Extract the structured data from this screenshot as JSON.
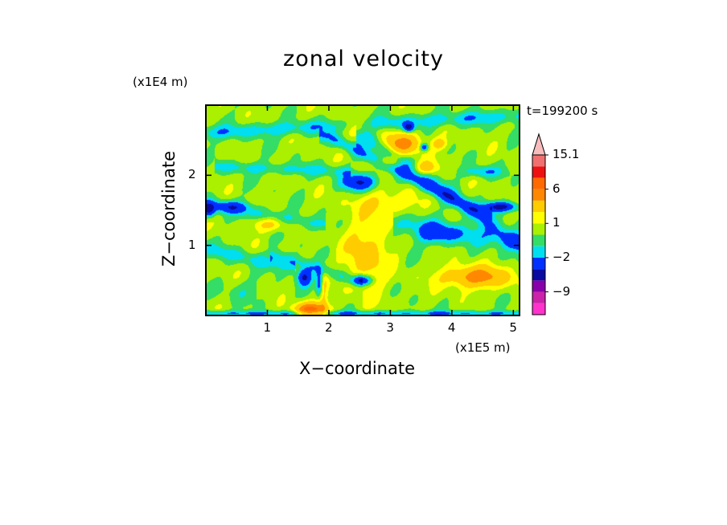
{
  "chart_data": {
    "type": "heatmap",
    "title": "zonal velocity",
    "xlabel": "X−coordinate",
    "ylabel": "Z−coordinate",
    "x_unit_label": "(x1E5 m)",
    "y_unit_label": "(x1E4 m)",
    "time_label": "t=199200 s",
    "xlim": [
      0,
      5.1
    ],
    "ylim": [
      0,
      3.0
    ],
    "x_ticks": [
      "1",
      "2",
      "3",
      "4",
      "5"
    ],
    "x_tick_values": [
      1,
      2,
      3,
      4,
      5
    ],
    "y_ticks": [
      "1",
      "2"
    ],
    "y_tick_values": [
      1,
      2
    ],
    "colorbar": {
      "levels": [
        -15,
        -12,
        -9,
        -6,
        -4,
        -2,
        -1,
        0,
        1,
        2,
        4,
        6,
        9,
        12,
        15.1
      ],
      "colors": [
        "#ff33cc",
        "#cc22aa",
        "#8800aa",
        "#0a0aa0",
        "#0030ff",
        "#00dff0",
        "#33dd66",
        "#aaf000",
        "#ffff00",
        "#ffcc00",
        "#ff8800",
        "#ff6a00",
        "#ee1111",
        "#f07070",
        "#f8bcbc"
      ],
      "labels": [
        "15.1",
        "6",
        "1",
        "−2",
        "−9"
      ],
      "label_values": [
        15.1,
        6,
        1,
        -2,
        -9
      ],
      "extend_top": true
    },
    "features": [
      {
        "kind": "band",
        "x": [
          0.0,
          5.1
        ],
        "z": [
          2.6,
          2.85
        ],
        "value": -1.2,
        "width": 0.1
      },
      {
        "kind": "band",
        "x": [
          0.3,
          2.2
        ],
        "z": [
          2.12,
          2.06
        ],
        "value": -1.0,
        "width": 0.08
      },
      {
        "kind": "band",
        "x": [
          0.0,
          1.8
        ],
        "z": [
          1.6,
          1.3
        ],
        "value": -1.0,
        "width": 0.1
      },
      {
        "kind": "band",
        "x": [
          2.6,
          5.1
        ],
        "z": [
          2.55,
          1.0
        ],
        "value": -1.3,
        "width": 0.15
      },
      {
        "kind": "band",
        "x": [
          2.0,
          4.5
        ],
        "z": [
          2.55,
          1.45
        ],
        "value": -1.3,
        "width": 0.09
      },
      {
        "kind": "band",
        "x": [
          3.2,
          5.1
        ],
        "z": [
          1.3,
          1.05
        ],
        "value": -1.1,
        "width": 0.15
      },
      {
        "kind": "band",
        "x": [
          1.2,
          2.4
        ],
        "z": [
          0.85,
          0.5
        ],
        "value": -1.1,
        "width": 0.09
      },
      {
        "kind": "band",
        "x": [
          0.0,
          1.3
        ],
        "z": [
          0.95,
          0.7
        ],
        "value": -1.0,
        "width": 0.1
      },
      {
        "kind": "band",
        "x": [
          0.0,
          5.1
        ],
        "z": [
          0.03,
          0.03
        ],
        "value": -1.5,
        "width": 0.04
      },
      {
        "kind": "blob",
        "x": 2.45,
        "z": 2.7,
        "rx": 0.35,
        "rz": 0.12,
        "value": 1.8
      },
      {
        "kind": "blob",
        "x": 3.2,
        "z": 2.45,
        "rx": 0.3,
        "rz": 0.15,
        "value": 4.5
      },
      {
        "kind": "blob",
        "x": 2.95,
        "z": 2.2,
        "rx": 0.2,
        "rz": 0.08,
        "value": 2.5
      },
      {
        "kind": "blob",
        "x": 3.55,
        "z": 2.1,
        "rx": 0.2,
        "rz": 0.1,
        "value": 3.0
      },
      {
        "kind": "blob",
        "x": 3.8,
        "z": 2.45,
        "rx": 0.12,
        "rz": 0.08,
        "value": 2.5
      },
      {
        "kind": "blob",
        "x": 2.9,
        "z": 1.6,
        "rx": 0.5,
        "rz": 0.18,
        "value": 1.8
      },
      {
        "kind": "blob",
        "x": 2.6,
        "z": 0.85,
        "rx": 0.35,
        "rz": 0.5,
        "value": 2.5
      },
      {
        "kind": "blob",
        "x": 4.4,
        "z": 0.55,
        "rx": 0.55,
        "rz": 0.15,
        "value": 4.5
      },
      {
        "kind": "blob",
        "x": 1.7,
        "z": 0.08,
        "rx": 0.25,
        "rz": 0.1,
        "value": 6.5
      },
      {
        "kind": "blob",
        "x": 1.9,
        "z": 0.3,
        "rx": 0.08,
        "rz": 0.35,
        "value": 2.5
      },
      {
        "kind": "blob",
        "x": 1.05,
        "z": 1.3,
        "rx": 0.3,
        "rz": 0.1,
        "value": 2.2
      },
      {
        "kind": "blob",
        "x": 2.5,
        "z": 1.9,
        "rx": 0.28,
        "rz": 0.12,
        "value": -4.5
      },
      {
        "kind": "blob",
        "x": 3.3,
        "z": 2.68,
        "rx": 0.08,
        "rz": 0.06,
        "value": -5.0
      },
      {
        "kind": "blob",
        "x": 3.55,
        "z": 2.4,
        "rx": 0.06,
        "rz": 0.05,
        "value": -4.5
      },
      {
        "kind": "blob",
        "x": 4.8,
        "z": 1.55,
        "rx": 0.28,
        "rz": 0.07,
        "value": -5.0
      },
      {
        "kind": "blob",
        "x": 2.55,
        "z": 0.5,
        "rx": 0.15,
        "rz": 0.07,
        "value": -4.5
      },
      {
        "kind": "blob",
        "x": 1.6,
        "z": 0.55,
        "rx": 0.12,
        "rz": 0.12,
        "value": -4.5
      },
      {
        "kind": "blob",
        "x": 1.85,
        "z": 0.45,
        "rx": 0.06,
        "rz": 0.2,
        "value": -4.5
      },
      {
        "kind": "blob",
        "x": 0.05,
        "z": 1.5,
        "rx": 0.1,
        "rz": 0.1,
        "value": -4.5
      },
      {
        "kind": "blob",
        "x": 3.75,
        "z": 1.15,
        "rx": 0.32,
        "rz": 0.14,
        "value": -2.5
      },
      {
        "kind": "blob",
        "x": 0.4,
        "z": 1.55,
        "rx": 0.3,
        "rz": 0.08,
        "value": -2.5
      },
      {
        "kind": "blob",
        "x": 4.5,
        "z": 2.05,
        "rx": 0.3,
        "rz": 0.08,
        "value": -2.5
      },
      {
        "kind": "blob",
        "x": 0.6,
        "z": 0.35,
        "rx": 0.35,
        "rz": 0.15,
        "value": -1.0
      }
    ]
  }
}
